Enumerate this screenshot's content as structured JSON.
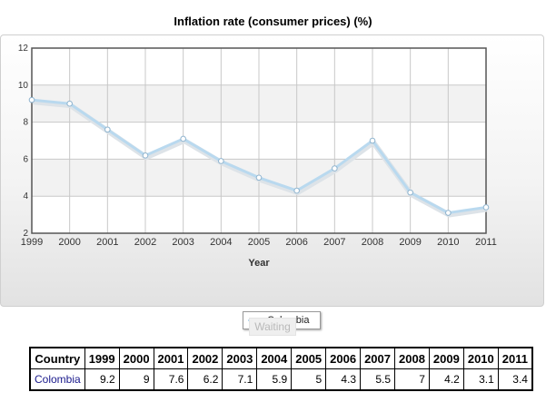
{
  "chart_data": {
    "type": "line",
    "title": "Inflation rate (consumer prices) (%)",
    "xlabel": "Year",
    "ylabel": "",
    "categories": [
      "1999",
      "2000",
      "2001",
      "2002",
      "2003",
      "2004",
      "2005",
      "2006",
      "2007",
      "2008",
      "2009",
      "2010",
      "2011"
    ],
    "ylim": [
      2,
      12
    ],
    "yticks": [
      "2",
      "4",
      "6",
      "8",
      "10",
      "12"
    ],
    "grid": true,
    "legend": "bottom-center",
    "series": [
      {
        "name": "Colombia",
        "values": [
          9.2,
          9,
          7.6,
          6.2,
          7.1,
          5.9,
          5,
          4.3,
          5.5,
          7,
          4.2,
          3.1,
          3.4
        ],
        "color": "#b9d9ef"
      }
    ]
  },
  "status": {
    "waiting_label": "Waiting"
  },
  "table": {
    "header_country": "Country",
    "years": [
      "1999",
      "2000",
      "2001",
      "2002",
      "2003",
      "2004",
      "2005",
      "2006",
      "2007",
      "2008",
      "2009",
      "2010",
      "2011"
    ],
    "rows": [
      {
        "country": "Colombia",
        "values": [
          "9.2",
          "9",
          "7.6",
          "6.2",
          "7.1",
          "5.9",
          "5",
          "4.3",
          "5.5",
          "7",
          "4.2",
          "3.1",
          "3.4"
        ]
      }
    ]
  }
}
